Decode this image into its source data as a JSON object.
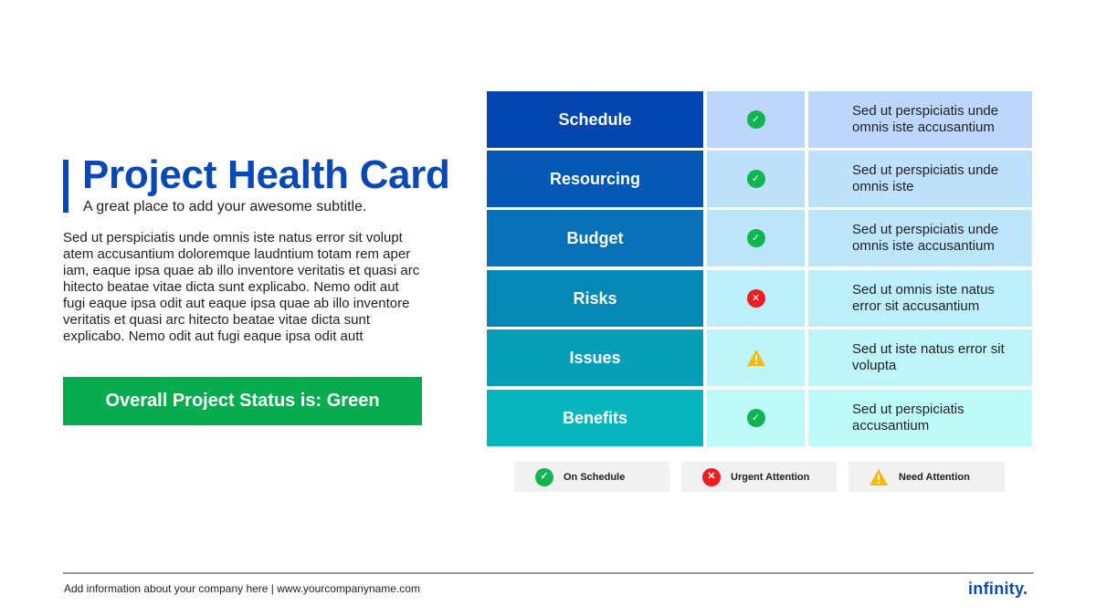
{
  "header": {
    "title": "Project Health Card",
    "subtitle": "A great place to add your awesome subtitle."
  },
  "body_text": "Sed ut perspiciatis unde omnis iste natus error sit volupt atem accusantium doloremque laudntium totam rem aper iam, eaque ipsa quae ab illo inventore veritatis et quasi arc hitecto beatae vitae dicta sunt explicabo. Nemo odit aut fugi eaque ipsa odit aut eaque ipsa quae ab illo inventore veritatis et quasi arc hitecto beatae vitae dicta sunt explicabo. Nemo odit aut fugi eaque ipsa odit autt",
  "status": {
    "label": "Overall Project Status is: Green",
    "color": "#07ac4f"
  },
  "health_rows": [
    {
      "category": "Schedule",
      "status": "on-schedule",
      "icon": "check-circle-icon",
      "description": "Sed ut perspiciatis unde omnis iste accusantium",
      "cat_color": "#0346b0",
      "icon_bg": "#bdd7fb",
      "desc_bg": "#bdd7fb"
    },
    {
      "category": "Resourcing",
      "status": "on-schedule",
      "icon": "check-circle-icon",
      "description": "Sed ut perspiciatis unde omnis iste",
      "cat_color": "#0358b4",
      "icon_bg": "#bde0fb",
      "desc_bg": "#bde0fb"
    },
    {
      "category": "Budget",
      "status": "on-schedule",
      "icon": "check-circle-icon",
      "description": "Sed ut perspiciatis unde omnis iste accusantium",
      "cat_color": "#0671b6",
      "icon_bg": "#bde6fb",
      "desc_bg": "#bde6fb"
    },
    {
      "category": "Risks",
      "status": "urgent-attention",
      "icon": "x-circle-icon",
      "description": "Sed ut omnis iste natus error sit accusantium",
      "cat_color": "#0688b6",
      "icon_bg": "#bdeffb",
      "desc_bg": "#bdeffb"
    },
    {
      "category": "Issues",
      "status": "need-attention",
      "icon": "warning-triangle-icon",
      "description": "Sed ut iste natus error sit volupta",
      "cat_color": "#079eb9",
      "icon_bg": "#bdf5fb",
      "desc_bg": "#bdf5fb"
    },
    {
      "category": "Benefits",
      "status": "on-schedule",
      "icon": "check-circle-icon",
      "description": "Sed ut perspiciatis accusantium",
      "cat_color": "#08b6bd",
      "icon_bg": "#bdfbfb",
      "desc_bg": "#bdfbfb"
    }
  ],
  "legend": [
    {
      "label": "On Schedule",
      "icon": "check-circle-icon"
    },
    {
      "label": "Urgent Attention",
      "icon": "x-circle-icon"
    },
    {
      "label": "Need Attention",
      "icon": "warning-triangle-icon"
    }
  ],
  "colors": {
    "accent": "#0a49b5",
    "green": "#10b552",
    "red": "#ee1d24",
    "amber": "#f6b90e"
  },
  "footer": {
    "text": "Add information about your company here | www.yourcompanyname.com",
    "logo": "infinity."
  }
}
